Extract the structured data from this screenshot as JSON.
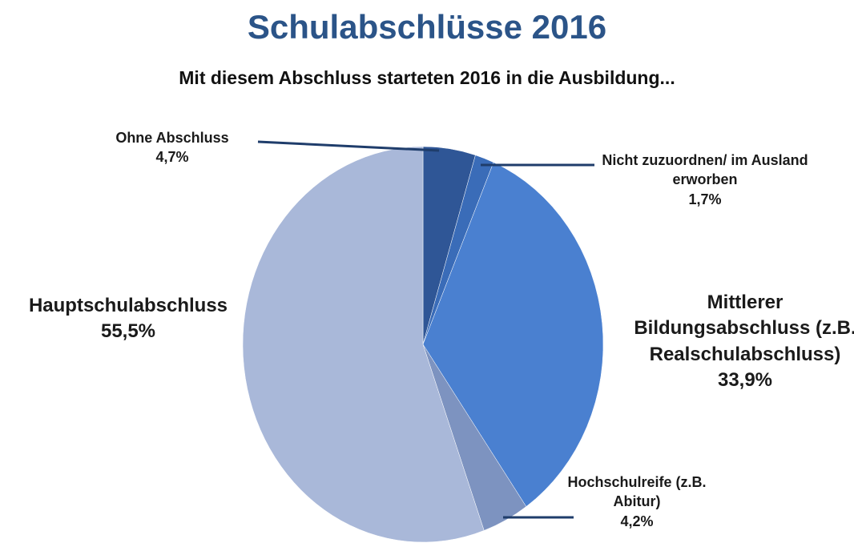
{
  "chart_data": {
    "type": "pie",
    "title": "Schulabschlüsse 2016",
    "subtitle": "Mit diesem Abschluss starteten 2016 in die Ausbildung...",
    "categories": [
      "Ohne Abschluss",
      "Nicht zuzuordnen/ im Ausland erworben",
      "Mittlerer Bildungsabschluss (z.B. Realschulabschluss)",
      "Hochschulreife (z.B. Abitur)",
      "Hauptschulabschluss"
    ],
    "values": [
      4.7,
      1.7,
      33.9,
      4.2,
      55.5
    ],
    "value_labels": [
      "4,7%",
      "1,7%",
      "33,9%",
      "4,2%",
      "55,5%"
    ],
    "colors": [
      "#2f5696",
      "#3a6cb8",
      "#4a80d0",
      "#7d93c0",
      "#a9b8d9"
    ]
  }
}
